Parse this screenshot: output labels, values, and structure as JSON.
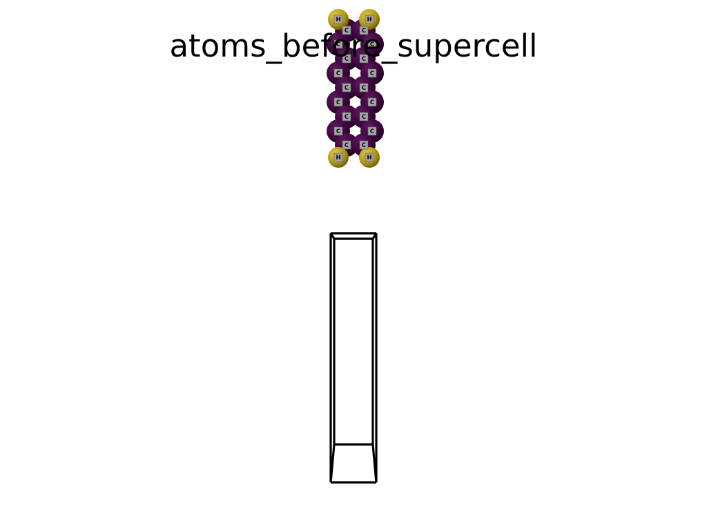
{
  "title": "atoms_before_supercell",
  "colors": {
    "background": "#ffffff",
    "carbon_sphere": "#3f053f",
    "hydrogen_sphere": "#b39a16",
    "label_box": "#a5a5a5",
    "cell_edges": "#000000"
  },
  "atoms": {
    "carbon_label": "C",
    "hydrogen_label": "H"
  }
}
